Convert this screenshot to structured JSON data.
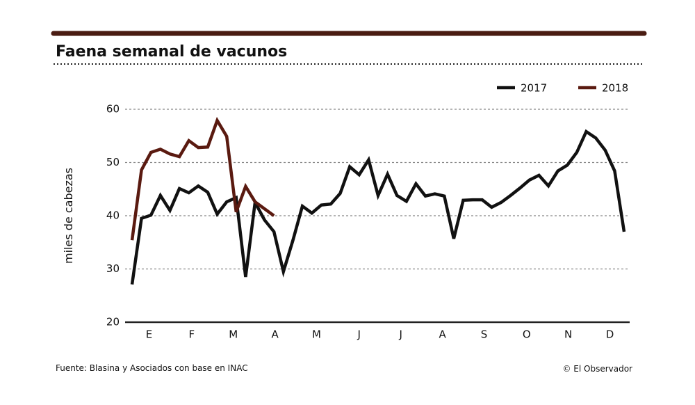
{
  "chart_data": {
    "type": "line",
    "title": "Faena semanal de vacunos",
    "ylabel": "miles de cabezas",
    "source": "Fuente: Blasina y Asociados con base en INAC",
    "credit": "© El Observador",
    "x": [
      0,
      1,
      2,
      3,
      4,
      5,
      6,
      7,
      8,
      9,
      10,
      11,
      12,
      13,
      14,
      15,
      16,
      17,
      18,
      19,
      20,
      21,
      22,
      23,
      24,
      25,
      26,
      27,
      28,
      29,
      30,
      31,
      32,
      33,
      34,
      35,
      36,
      37,
      38,
      39,
      40,
      41,
      42,
      43,
      44,
      45,
      46,
      47,
      48,
      49,
      50,
      51,
      52
    ],
    "xlim": [
      0,
      52
    ],
    "xticks": [
      {
        "value": 1.8,
        "label": "E"
      },
      {
        "value": 6.3,
        "label": "F"
      },
      {
        "value": 10.7,
        "label": "M"
      },
      {
        "value": 15.1,
        "label": "A"
      },
      {
        "value": 19.5,
        "label": "M"
      },
      {
        "value": 24.0,
        "label": "J"
      },
      {
        "value": 28.4,
        "label": "J"
      },
      {
        "value": 32.8,
        "label": "A"
      },
      {
        "value": 37.2,
        "label": "S"
      },
      {
        "value": 41.7,
        "label": "O"
      },
      {
        "value": 46.1,
        "label": "N"
      },
      {
        "value": 50.5,
        "label": "D"
      }
    ],
    "ylim": [
      20,
      60
    ],
    "yticks": [
      20,
      30,
      40,
      50,
      60
    ],
    "grid": true,
    "legend": "top-right",
    "series": [
      {
        "name": "2017",
        "color": "#111111",
        "values": [
          27.1,
          39.5,
          40.1,
          43.8,
          41.0,
          45.1,
          44.3,
          45.6,
          44.4,
          40.3,
          42.6,
          43.4,
          28.5,
          42.5,
          39.2,
          37.0,
          29.5,
          35.4,
          41.8,
          40.5,
          42.0,
          42.2,
          44.2,
          49.2,
          47.7,
          50.5,
          43.8,
          47.8,
          43.8,
          42.7,
          46.0,
          43.7,
          44.1,
          43.7,
          35.7,
          42.9,
          43.0,
          43.0,
          41.6,
          42.5,
          43.8,
          45.2,
          46.7,
          47.6,
          45.6,
          48.4,
          49.5,
          51.9,
          55.8,
          54.6,
          52.3,
          48.4,
          37.0
        ]
      },
      {
        "name": "2018",
        "color": "#5a1a10",
        "values": [
          35.4,
          48.6,
          51.9,
          52.5,
          51.6,
          51.1,
          54.1,
          52.8,
          52.9,
          57.9,
          54.9,
          40.7,
          45.5,
          42.6,
          41.3,
          40.0,
          null,
          null,
          null,
          null,
          null,
          null,
          null,
          null,
          null,
          null,
          null,
          null,
          null,
          null,
          null,
          null,
          null,
          null,
          null,
          null,
          null,
          null,
          null,
          null,
          null,
          null,
          null,
          null,
          null,
          null,
          null,
          null,
          null,
          null,
          null,
          null,
          null
        ]
      }
    ]
  }
}
